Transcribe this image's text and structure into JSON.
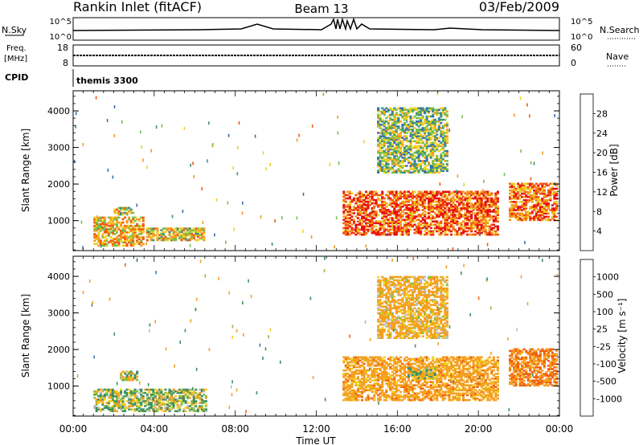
{
  "header": {
    "station": "Rankin Inlet (fitACF)",
    "beam": "Beam 13",
    "date": "03/Feb/2009"
  },
  "top_panels": {
    "nsky_label": "N.Sky",
    "nsky_ticks": [
      "10^5",
      "10^0"
    ],
    "nsearch_label": "N.Search",
    "nsearch_ticks": [
      "10^5",
      "10^0"
    ],
    "freq_label": "Freq.",
    "freq_unit": "[MHz]",
    "freq_ticks": [
      "18",
      "8"
    ],
    "nave_label": "Nave",
    "nave_ticks": [
      "60",
      "0"
    ],
    "cpid_label": "CPID",
    "cpid_value": "themis 3300"
  },
  "chart_data": [
    {
      "type": "heatmap",
      "name": "power",
      "ylabel": "Slant Range [km]",
      "yticks": [
        "1000",
        "2000",
        "3000",
        "4000"
      ],
      "colorbar_label": "Power [dB]",
      "colorbar_ticks": [
        "4",
        "8",
        "12",
        "16",
        "20",
        "24",
        "28"
      ],
      "colorbar_colors": [
        "#1a2bd8",
        "#3a6bb0",
        "#3f8f7a",
        "#74bf4a",
        "#f0d020",
        "#f59a20",
        "#f05a10",
        "#e81010"
      ],
      "xlim_hours": [
        0,
        24
      ],
      "ylim_km": [
        180,
        4550
      ],
      "regions": [
        {
          "t0": 1.0,
          "t1": 3.5,
          "r0": 300,
          "r1": 1100,
          "power_db": 20
        },
        {
          "t0": 2.0,
          "t1": 3.0,
          "r0": 1150,
          "r1": 1350,
          "power_db": 18
        },
        {
          "t0": 3.6,
          "t1": 6.4,
          "r0": 450,
          "r1": 800,
          "power_db": 18
        },
        {
          "t0": 13.3,
          "t1": 21.0,
          "r0": 600,
          "r1": 1800,
          "power_db": 26
        },
        {
          "t0": 15.0,
          "t1": 18.5,
          "r0": 2300,
          "r1": 4100,
          "power_db": 14
        },
        {
          "t0": 21.5,
          "t1": 23.9,
          "r0": 1000,
          "r1": 2000,
          "power_db": 24
        }
      ]
    },
    {
      "type": "heatmap",
      "name": "velocity",
      "ylabel": "Slant Range [km]",
      "yticks": [
        "1000",
        "2000",
        "3000",
        "4000"
      ],
      "colorbar_label": "Velocity [m s⁻¹]",
      "colorbar_ticks": [
        "1000",
        "500",
        "100",
        "25",
        "-25",
        "-100",
        "-500",
        "-1000"
      ],
      "colorbar_colors": [
        "#2040c8",
        "#3a7ab0",
        "#3f9060",
        "#8ac040",
        "#bcbcb4",
        "#f0d020",
        "#f5a020",
        "#f06010",
        "#e81010"
      ],
      "xlim_hours": [
        0,
        24
      ],
      "ylim_km": [
        180,
        4550
      ],
      "regions": [
        {
          "t0": 1.0,
          "t1": 6.5,
          "r0": 300,
          "r1": 900,
          "velocity": 50
        },
        {
          "t0": 2.3,
          "t1": 3.2,
          "r0": 1150,
          "r1": 1400,
          "velocity": 0
        },
        {
          "t0": 13.3,
          "t1": 21.0,
          "r0": 600,
          "r1": 1800,
          "velocity": -300
        },
        {
          "t0": 16.5,
          "t1": 18.0,
          "r0": 1200,
          "r1": 1500,
          "velocity": 0
        },
        {
          "t0": 15.0,
          "t1": 18.5,
          "r0": 2300,
          "r1": 4000,
          "velocity": -200
        },
        {
          "t0": 21.5,
          "t1": 23.9,
          "r0": 1000,
          "r1": 2000,
          "velocity": -500
        }
      ]
    }
  ],
  "xaxis": {
    "label": "Time UT",
    "ticks": [
      "00:00",
      "04:00",
      "08:00",
      "12:00",
      "16:00",
      "20:00",
      "00:00"
    ]
  }
}
